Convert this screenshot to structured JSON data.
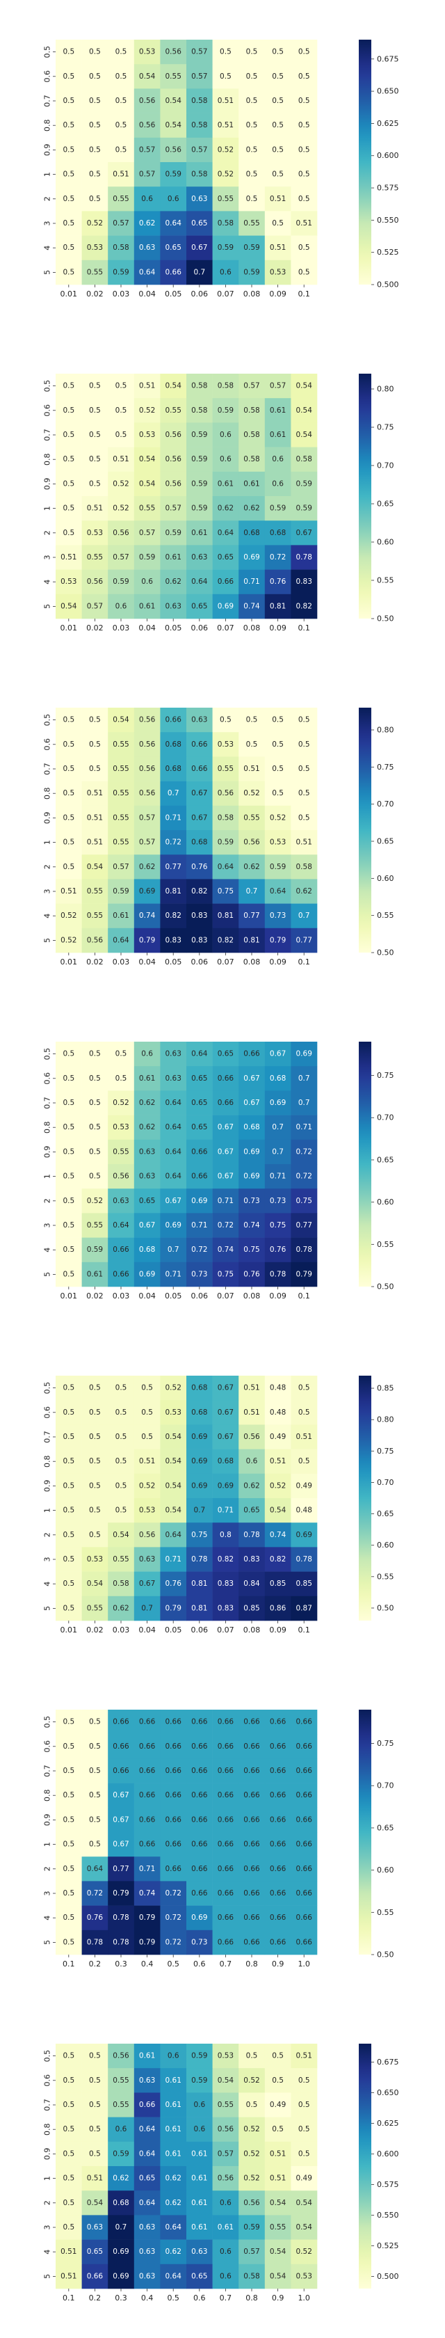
{
  "chart_data": [
    {
      "type": "heatmap",
      "colormap": "YlGnBu",
      "x_ticks": [
        "0.01",
        "0.02",
        "0.03",
        "0.04",
        "0.05",
        "0.06",
        "0.07",
        "0.08",
        "0.09",
        "0.1"
      ],
      "y_ticks": [
        "0.5",
        "0.6",
        "0.7",
        "0.8",
        "0.9",
        "1",
        "2",
        "3",
        "4",
        "5"
      ],
      "colorbar": {
        "min": 0.5,
        "max": 0.69,
        "ticks": [
          "0.500",
          "0.525",
          "0.550",
          "0.575",
          "0.600",
          "0.625",
          "0.650",
          "0.675"
        ]
      },
      "values": [
        [
          "0.5",
          "0.5",
          "0.5",
          "0.53",
          "0.56",
          "0.57",
          "0.5",
          "0.5",
          "0.5",
          "0.5"
        ],
        [
          "0.5",
          "0.5",
          "0.5",
          "0.54",
          "0.55",
          "0.57",
          "0.5",
          "0.5",
          "0.5",
          "0.5"
        ],
        [
          "0.5",
          "0.5",
          "0.5",
          "0.56",
          "0.54",
          "0.58",
          "0.51",
          "0.5",
          "0.5",
          "0.5"
        ],
        [
          "0.5",
          "0.5",
          "0.5",
          "0.56",
          "0.54",
          "0.58",
          "0.51",
          "0.5",
          "0.5",
          "0.5"
        ],
        [
          "0.5",
          "0.5",
          "0.5",
          "0.57",
          "0.56",
          "0.57",
          "0.52",
          "0.5",
          "0.5",
          "0.5"
        ],
        [
          "0.5",
          "0.5",
          "0.51",
          "0.57",
          "0.59",
          "0.58",
          "0.52",
          "0.5",
          "0.5",
          "0.5"
        ],
        [
          "0.5",
          "0.5",
          "0.55",
          "0.6",
          "0.6",
          "0.63",
          "0.55",
          "0.5",
          "0.51",
          "0.5"
        ],
        [
          "0.5",
          "0.52",
          "0.57",
          "0.62",
          "0.64",
          "0.65",
          "0.58",
          "0.55",
          "0.5",
          "0.51"
        ],
        [
          "0.5",
          "0.53",
          "0.58",
          "0.63",
          "0.65",
          "0.67",
          "0.59",
          "0.59",
          "0.51",
          "0.5"
        ],
        [
          "0.5",
          "0.55",
          "0.59",
          "0.64",
          "0.66",
          "0.7",
          "0.6",
          "0.59",
          "0.53",
          "0.5"
        ]
      ]
    },
    {
      "type": "heatmap",
      "colormap": "YlGnBu",
      "x_ticks": [
        "0.01",
        "0.02",
        "0.03",
        "0.04",
        "0.05",
        "0.06",
        "0.07",
        "0.08",
        "0.09",
        "0.1"
      ],
      "y_ticks": [
        "0.5",
        "0.6",
        "0.7",
        "0.8",
        "0.9",
        "1",
        "2",
        "3",
        "4",
        "5"
      ],
      "colorbar": {
        "min": 0.5,
        "max": 0.82,
        "ticks": [
          "0.50",
          "0.55",
          "0.60",
          "0.65",
          "0.70",
          "0.75",
          "0.80"
        ]
      },
      "values": [
        [
          "0.5",
          "0.5",
          "0.5",
          "0.51",
          "0.54",
          "0.58",
          "0.58",
          "0.57",
          "0.57",
          "0.54"
        ],
        [
          "0.5",
          "0.5",
          "0.5",
          "0.52",
          "0.55",
          "0.58",
          "0.59",
          "0.58",
          "0.61",
          "0.54"
        ],
        [
          "0.5",
          "0.5",
          "0.5",
          "0.53",
          "0.56",
          "0.59",
          "0.6",
          "0.58",
          "0.61",
          "0.54"
        ],
        [
          "0.5",
          "0.5",
          "0.51",
          "0.54",
          "0.56",
          "0.59",
          "0.6",
          "0.58",
          "0.6",
          "0.58"
        ],
        [
          "0.5",
          "0.5",
          "0.52",
          "0.54",
          "0.56",
          "0.59",
          "0.61",
          "0.61",
          "0.6",
          "0.59"
        ],
        [
          "0.5",
          "0.51",
          "0.52",
          "0.55",
          "0.57",
          "0.59",
          "0.62",
          "0.62",
          "0.59",
          "0.59"
        ],
        [
          "0.5",
          "0.53",
          "0.56",
          "0.57",
          "0.59",
          "0.61",
          "0.64",
          "0.68",
          "0.68",
          "0.67"
        ],
        [
          "0.51",
          "0.55",
          "0.57",
          "0.59",
          "0.61",
          "0.63",
          "0.65",
          "0.69",
          "0.72",
          "0.78"
        ],
        [
          "0.53",
          "0.56",
          "0.59",
          "0.6",
          "0.62",
          "0.64",
          "0.66",
          "0.71",
          "0.76",
          "0.83"
        ],
        [
          "0.54",
          "0.57",
          "0.6",
          "0.61",
          "0.63",
          "0.65",
          "0.69",
          "0.74",
          "0.81",
          "0.82"
        ]
      ]
    },
    {
      "type": "heatmap",
      "colormap": "YlGnBu",
      "x_ticks": [
        "0.01",
        "0.02",
        "0.03",
        "0.04",
        "0.05",
        "0.06",
        "0.07",
        "0.08",
        "0.09",
        "0.1"
      ],
      "y_ticks": [
        "0.5",
        "0.6",
        "0.7",
        "0.8",
        "0.9",
        "1",
        "2",
        "3",
        "4",
        "5"
      ],
      "colorbar": {
        "min": 0.5,
        "max": 0.83,
        "ticks": [
          "0.50",
          "0.55",
          "0.60",
          "0.65",
          "0.70",
          "0.75",
          "0.80"
        ]
      },
      "values": [
        [
          "0.5",
          "0.5",
          "0.54",
          "0.56",
          "0.66",
          "0.63",
          "0.5",
          "0.5",
          "0.5",
          "0.5"
        ],
        [
          "0.5",
          "0.5",
          "0.55",
          "0.56",
          "0.68",
          "0.66",
          "0.53",
          "0.5",
          "0.5",
          "0.5"
        ],
        [
          "0.5",
          "0.5",
          "0.55",
          "0.56",
          "0.68",
          "0.66",
          "0.55",
          "0.51",
          "0.5",
          "0.5"
        ],
        [
          "0.5",
          "0.51",
          "0.55",
          "0.56",
          "0.7",
          "0.67",
          "0.56",
          "0.52",
          "0.5",
          "0.5"
        ],
        [
          "0.5",
          "0.51",
          "0.55",
          "0.57",
          "0.71",
          "0.67",
          "0.58",
          "0.55",
          "0.52",
          "0.5"
        ],
        [
          "0.5",
          "0.51",
          "0.55",
          "0.57",
          "0.72",
          "0.68",
          "0.59",
          "0.56",
          "0.53",
          "0.51"
        ],
        [
          "0.5",
          "0.54",
          "0.57",
          "0.62",
          "0.77",
          "0.76",
          "0.64",
          "0.62",
          "0.59",
          "0.58"
        ],
        [
          "0.51",
          "0.55",
          "0.59",
          "0.69",
          "0.81",
          "0.82",
          "0.75",
          "0.7",
          "0.64",
          "0.62"
        ],
        [
          "0.52",
          "0.55",
          "0.61",
          "0.74",
          "0.82",
          "0.83",
          "0.81",
          "0.77",
          "0.73",
          "0.7"
        ],
        [
          "0.52",
          "0.56",
          "0.64",
          "0.79",
          "0.83",
          "0.83",
          "0.82",
          "0.81",
          "0.79",
          "0.77"
        ]
      ]
    },
    {
      "type": "heatmap",
      "colormap": "YlGnBu",
      "x_ticks": [
        "0.01",
        "0.02",
        "0.03",
        "0.04",
        "0.05",
        "0.06",
        "0.07",
        "0.08",
        "0.09",
        "0.1"
      ],
      "y_ticks": [
        "0.5",
        "0.6",
        "0.7",
        "0.8",
        "0.9",
        "1",
        "2",
        "3",
        "4",
        "5"
      ],
      "colorbar": {
        "min": 0.5,
        "max": 0.79,
        "ticks": [
          "0.50",
          "0.55",
          "0.60",
          "0.65",
          "0.70",
          "0.75"
        ]
      },
      "values": [
        [
          "0.5",
          "0.5",
          "0.5",
          "0.6",
          "0.63",
          "0.64",
          "0.65",
          "0.66",
          "0.67",
          "0.69"
        ],
        [
          "0.5",
          "0.5",
          "0.5",
          "0.61",
          "0.63",
          "0.65",
          "0.66",
          "0.67",
          "0.68",
          "0.7"
        ],
        [
          "0.5",
          "0.5",
          "0.52",
          "0.62",
          "0.64",
          "0.65",
          "0.66",
          "0.67",
          "0.69",
          "0.7"
        ],
        [
          "0.5",
          "0.5",
          "0.53",
          "0.62",
          "0.64",
          "0.65",
          "0.67",
          "0.68",
          "0.7",
          "0.71"
        ],
        [
          "0.5",
          "0.5",
          "0.55",
          "0.63",
          "0.64",
          "0.66",
          "0.67",
          "0.69",
          "0.7",
          "0.72"
        ],
        [
          "0.5",
          "0.5",
          "0.56",
          "0.63",
          "0.64",
          "0.66",
          "0.67",
          "0.69",
          "0.71",
          "0.72"
        ],
        [
          "0.5",
          "0.52",
          "0.63",
          "0.65",
          "0.67",
          "0.69",
          "0.71",
          "0.73",
          "0.73",
          "0.75"
        ],
        [
          "0.5",
          "0.55",
          "0.64",
          "0.67",
          "0.69",
          "0.71",
          "0.72",
          "0.74",
          "0.75",
          "0.77"
        ],
        [
          "0.5",
          "0.59",
          "0.66",
          "0.68",
          "0.7",
          "0.72",
          "0.74",
          "0.75",
          "0.76",
          "0.78"
        ],
        [
          "0.5",
          "0.61",
          "0.66",
          "0.69",
          "0.71",
          "0.73",
          "0.75",
          "0.76",
          "0.78",
          "0.79"
        ]
      ]
    },
    {
      "type": "heatmap",
      "colormap": "YlGnBu",
      "x_ticks": [
        "0.01",
        "0.02",
        "0.03",
        "0.04",
        "0.05",
        "0.06",
        "0.07",
        "0.08",
        "0.09",
        "0.1"
      ],
      "y_ticks": [
        "0.5",
        "0.6",
        "0.7",
        "0.8",
        "0.9",
        "1",
        "2",
        "3",
        "4",
        "5"
      ],
      "colorbar": {
        "min": 0.48,
        "max": 0.87,
        "ticks": [
          "0.50",
          "0.55",
          "0.60",
          "0.65",
          "0.70",
          "0.75",
          "0.80",
          "0.85"
        ]
      },
      "values": [
        [
          "0.5",
          "0.5",
          "0.5",
          "0.5",
          "0.52",
          "0.68",
          "0.67",
          "0.51",
          "0.48",
          "0.5"
        ],
        [
          "0.5",
          "0.5",
          "0.5",
          "0.5",
          "0.53",
          "0.68",
          "0.67",
          "0.51",
          "0.48",
          "0.5"
        ],
        [
          "0.5",
          "0.5",
          "0.5",
          "0.5",
          "0.54",
          "0.69",
          "0.67",
          "0.56",
          "0.49",
          "0.51"
        ],
        [
          "0.5",
          "0.5",
          "0.5",
          "0.51",
          "0.54",
          "0.69",
          "0.68",
          "0.6",
          "0.51",
          "0.5"
        ],
        [
          "0.5",
          "0.5",
          "0.5",
          "0.52",
          "0.54",
          "0.69",
          "0.69",
          "0.62",
          "0.52",
          "0.49"
        ],
        [
          "0.5",
          "0.5",
          "0.5",
          "0.53",
          "0.54",
          "0.7",
          "0.71",
          "0.65",
          "0.54",
          "0.48"
        ],
        [
          "0.5",
          "0.5",
          "0.54",
          "0.56",
          "0.64",
          "0.75",
          "0.8",
          "0.78",
          "0.74",
          "0.69"
        ],
        [
          "0.5",
          "0.53",
          "0.55",
          "0.63",
          "0.71",
          "0.78",
          "0.82",
          "0.83",
          "0.82",
          "0.78"
        ],
        [
          "0.5",
          "0.54",
          "0.58",
          "0.67",
          "0.76",
          "0.81",
          "0.83",
          "0.84",
          "0.85",
          "0.85"
        ],
        [
          "0.5",
          "0.55",
          "0.62",
          "0.7",
          "0.79",
          "0.81",
          "0.83",
          "0.85",
          "0.86",
          "0.87"
        ]
      ]
    },
    {
      "type": "heatmap",
      "colormap": "YlGnBu",
      "x_ticks": [
        "0.1",
        "0.2",
        "0.3",
        "0.4",
        "0.5",
        "0.6",
        "0.7",
        "0.8",
        "0.9",
        "1.0"
      ],
      "y_ticks": [
        "0.5",
        "0.6",
        "0.7",
        "0.8",
        "0.9",
        "1",
        "2",
        "3",
        "4",
        "5"
      ],
      "colorbar": {
        "min": 0.5,
        "max": 0.79,
        "ticks": [
          "0.50",
          "0.55",
          "0.60",
          "0.65",
          "0.70",
          "0.75"
        ]
      },
      "values": [
        [
          "0.5",
          "0.5",
          "0.66",
          "0.66",
          "0.66",
          "0.66",
          "0.66",
          "0.66",
          "0.66",
          "0.66"
        ],
        [
          "0.5",
          "0.5",
          "0.66",
          "0.66",
          "0.66",
          "0.66",
          "0.66",
          "0.66",
          "0.66",
          "0.66"
        ],
        [
          "0.5",
          "0.5",
          "0.66",
          "0.66",
          "0.66",
          "0.66",
          "0.66",
          "0.66",
          "0.66",
          "0.66"
        ],
        [
          "0.5",
          "0.5",
          "0.67",
          "0.66",
          "0.66",
          "0.66",
          "0.66",
          "0.66",
          "0.66",
          "0.66"
        ],
        [
          "0.5",
          "0.5",
          "0.67",
          "0.66",
          "0.66",
          "0.66",
          "0.66",
          "0.66",
          "0.66",
          "0.66"
        ],
        [
          "0.5",
          "0.5",
          "0.67",
          "0.66",
          "0.66",
          "0.66",
          "0.66",
          "0.66",
          "0.66",
          "0.66"
        ],
        [
          "0.5",
          "0.64",
          "0.77",
          "0.71",
          "0.66",
          "0.66",
          "0.66",
          "0.66",
          "0.66",
          "0.66"
        ],
        [
          "0.5",
          "0.72",
          "0.79",
          "0.74",
          "0.72",
          "0.66",
          "0.66",
          "0.66",
          "0.66",
          "0.66"
        ],
        [
          "0.5",
          "0.76",
          "0.78",
          "0.79",
          "0.72",
          "0.69",
          "0.66",
          "0.66",
          "0.66",
          "0.66"
        ],
        [
          "0.5",
          "0.78",
          "0.78",
          "0.79",
          "0.72",
          "0.73",
          "0.66",
          "0.66",
          "0.66",
          "0.66"
        ]
      ]
    },
    {
      "type": "heatmap",
      "colormap": "YlGnBu",
      "x_ticks": [
        "0.1",
        "0.2",
        "0.3",
        "0.4",
        "0.5",
        "0.6",
        "0.7",
        "0.8",
        "0.9",
        "1.0"
      ],
      "y_ticks": [
        "0.5",
        "0.6",
        "0.7",
        "0.8",
        "0.9",
        "1",
        "2",
        "3",
        "4",
        "5"
      ],
      "colorbar": {
        "min": 0.49,
        "max": 0.69,
        "ticks": [
          "0.500",
          "0.525",
          "0.550",
          "0.575",
          "0.600",
          "0.625",
          "0.650",
          "0.675"
        ]
      },
      "values": [
        [
          "0.5",
          "0.5",
          "0.56",
          "0.61",
          "0.6",
          "0.59",
          "0.53",
          "0.5",
          "0.5",
          "0.51"
        ],
        [
          "0.5",
          "0.5",
          "0.55",
          "0.63",
          "0.61",
          "0.59",
          "0.54",
          "0.52",
          "0.5",
          "0.5"
        ],
        [
          "0.5",
          "0.5",
          "0.55",
          "0.66",
          "0.61",
          "0.6",
          "0.55",
          "0.5",
          "0.49",
          "0.5"
        ],
        [
          "0.5",
          "0.5",
          "0.6",
          "0.64",
          "0.61",
          "0.6",
          "0.56",
          "0.52",
          "0.5",
          "0.5"
        ],
        [
          "0.5",
          "0.5",
          "0.59",
          "0.64",
          "0.61",
          "0.61",
          "0.57",
          "0.52",
          "0.51",
          "0.5"
        ],
        [
          "0.5",
          "0.51",
          "0.62",
          "0.65",
          "0.62",
          "0.61",
          "0.56",
          "0.52",
          "0.51",
          "0.49"
        ],
        [
          "0.5",
          "0.54",
          "0.68",
          "0.64",
          "0.62",
          "0.61",
          "0.6",
          "0.56",
          "0.54",
          "0.54"
        ],
        [
          "0.5",
          "0.63",
          "0.7",
          "0.63",
          "0.64",
          "0.61",
          "0.61",
          "0.59",
          "0.55",
          "0.54"
        ],
        [
          "0.51",
          "0.65",
          "0.69",
          "0.63",
          "0.62",
          "0.63",
          "0.6",
          "0.57",
          "0.54",
          "0.52"
        ],
        [
          "0.51",
          "0.66",
          "0.69",
          "0.63",
          "0.64",
          "0.65",
          "0.6",
          "0.58",
          "0.54",
          "0.53"
        ]
      ]
    }
  ]
}
